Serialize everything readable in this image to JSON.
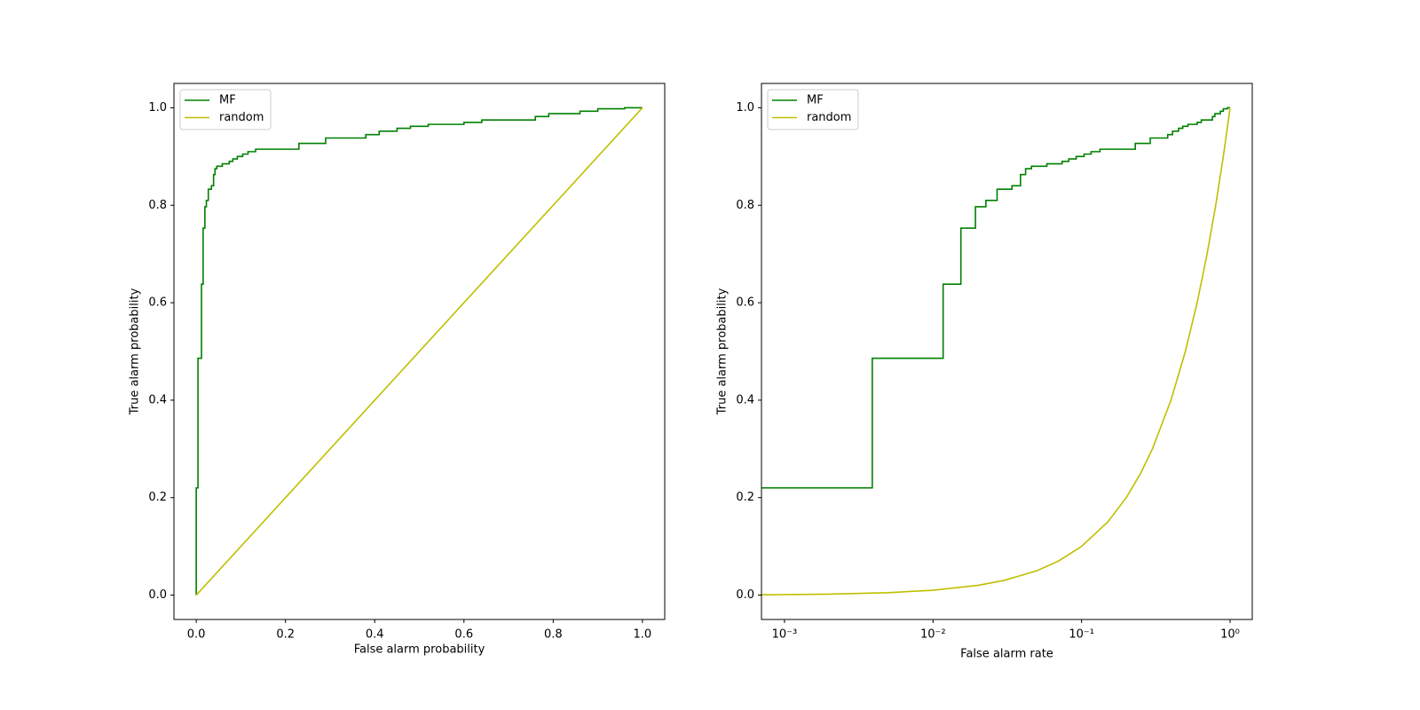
{
  "chart_data": [
    {
      "type": "line",
      "xlabel": "False alarm probability",
      "ylabel": "True alarm probability",
      "xscale": "linear",
      "xlim": [
        -0.05,
        1.05
      ],
      "ylim": [
        -0.05,
        1.05
      ],
      "xticks": [
        {
          "value": 0,
          "label": "0.0"
        },
        0.2,
        0.4,
        0.6,
        0.8,
        {
          "value": 1,
          "label": "1.0"
        }
      ],
      "yticks": [
        {
          "value": 0,
          "label": "0.0"
        },
        0.2,
        0.4,
        0.6,
        0.8,
        {
          "value": 1,
          "label": "1.0"
        }
      ],
      "legend": "upper-left",
      "series": [
        {
          "name": "MF",
          "color": "#008000",
          "x": [
            0,
            0,
            0.0039,
            0.0039,
            0.0117,
            0.0117,
            0.0154,
            0.0154,
            0.0193,
            0.0193,
            0.0227,
            0.0227,
            0.027,
            0.027,
            0.034,
            0.034,
            0.0388,
            0.0388,
            0.042,
            0.042,
            0.046,
            0.046,
            0.0584,
            0.0584,
            0.074,
            0.074,
            0.082,
            0.082,
            0.092,
            0.092,
            0.104,
            0.104,
            0.116,
            0.116,
            0.133,
            0.133,
            0.23,
            0.23,
            0.29,
            0.29,
            0.38,
            0.38,
            0.41,
            0.41,
            0.45,
            0.45,
            0.48,
            0.48,
            0.52,
            0.52,
            0.6,
            0.6,
            0.64,
            0.64,
            0.76,
            0.76,
            0.79,
            0.79,
            0.86,
            0.86,
            0.9,
            0.9,
            0.96,
            0.96,
            1.0
          ],
          "values": [
            0,
            0.22,
            0.22,
            0.486,
            0.486,
            0.638,
            0.638,
            0.753,
            0.753,
            0.797,
            0.797,
            0.81,
            0.81,
            0.833,
            0.833,
            0.84,
            0.84,
            0.863,
            0.863,
            0.875,
            0.875,
            0.88,
            0.88,
            0.885,
            0.885,
            0.89,
            0.89,
            0.895,
            0.895,
            0.9,
            0.9,
            0.905,
            0.905,
            0.91,
            0.91,
            0.915,
            0.915,
            0.927,
            0.927,
            0.938,
            0.938,
            0.945,
            0.945,
            0.952,
            0.952,
            0.958,
            0.958,
            0.962,
            0.962,
            0.966,
            0.966,
            0.97,
            0.97,
            0.975,
            0.975,
            0.982,
            0.982,
            0.988,
            0.988,
            0.993,
            0.993,
            0.998,
            0.998,
            1.0,
            1.0
          ]
        },
        {
          "name": "random",
          "color": "#bfbf00",
          "x": [
            0,
            1
          ],
          "values": [
            0,
            1
          ]
        }
      ]
    },
    {
      "type": "line",
      "xlabel": "False alarm rate",
      "ylabel": "True alarm probability",
      "xscale": "log",
      "xlim": [
        0.0007,
        1.41
      ],
      "ylim": [
        -0.05,
        1.05
      ],
      "xticks": [
        {
          "value": 0.001,
          "label": "10⁻³"
        },
        {
          "value": 0.01,
          "label": "10⁻²"
        },
        {
          "value": 0.1,
          "label": "10⁻¹"
        },
        {
          "value": 1,
          "label": "10⁰"
        }
      ],
      "yticks": [
        {
          "value": 0,
          "label": "0.0"
        },
        0.2,
        0.4,
        0.6,
        0.8,
        {
          "value": 1,
          "label": "1.0"
        }
      ],
      "legend": "upper-left",
      "series": [
        {
          "name": "MF",
          "color": "#008000",
          "x": [
            0,
            0.0039,
            0.0039,
            0.0117,
            0.0117,
            0.0154,
            0.0154,
            0.0193,
            0.0193,
            0.0227,
            0.0227,
            0.027,
            0.027,
            0.034,
            0.034,
            0.0388,
            0.0388,
            0.042,
            0.042,
            0.046,
            0.046,
            0.0584,
            0.0584,
            0.074,
            0.074,
            0.082,
            0.082,
            0.092,
            0.092,
            0.104,
            0.104,
            0.116,
            0.116,
            0.133,
            0.133,
            0.23,
            0.23,
            0.29,
            0.29,
            0.38,
            0.38,
            0.41,
            0.41,
            0.45,
            0.45,
            0.48,
            0.48,
            0.52,
            0.52,
            0.6,
            0.6,
            0.64,
            0.64,
            0.76,
            0.76,
            0.79,
            0.79,
            0.86,
            0.86,
            0.9,
            0.9,
            0.96,
            0.96,
            1.0
          ],
          "values": [
            0.22,
            0.22,
            0.486,
            0.486,
            0.638,
            0.638,
            0.753,
            0.753,
            0.797,
            0.797,
            0.81,
            0.81,
            0.833,
            0.833,
            0.84,
            0.84,
            0.863,
            0.863,
            0.875,
            0.875,
            0.88,
            0.88,
            0.885,
            0.885,
            0.89,
            0.89,
            0.895,
            0.895,
            0.9,
            0.9,
            0.905,
            0.905,
            0.91,
            0.91,
            0.915,
            0.915,
            0.927,
            0.927,
            0.938,
            0.938,
            0.945,
            0.945,
            0.952,
            0.952,
            0.958,
            0.958,
            0.962,
            0.962,
            0.966,
            0.966,
            0.97,
            0.97,
            0.975,
            0.975,
            0.982,
            0.982,
            0.988,
            0.988,
            0.993,
            0.993,
            0.998,
            0.998,
            1.0,
            1.0
          ]
        },
        {
          "name": "random",
          "color": "#bfbf00",
          "x": [
            0.0007,
            0.001,
            0.002,
            0.005,
            0.01,
            0.02,
            0.03,
            0.05,
            0.07,
            0.1,
            0.15,
            0.2,
            0.25,
            0.3,
            0.4,
            0.5,
            0.6,
            0.7,
            0.8,
            0.9,
            1
          ],
          "values": [
            0.0007,
            0.001,
            0.002,
            0.005,
            0.01,
            0.02,
            0.03,
            0.05,
            0.07,
            0.1,
            0.15,
            0.2,
            0.25,
            0.3,
            0.4,
            0.5,
            0.6,
            0.7,
            0.8,
            0.9,
            1
          ]
        }
      ]
    }
  ]
}
